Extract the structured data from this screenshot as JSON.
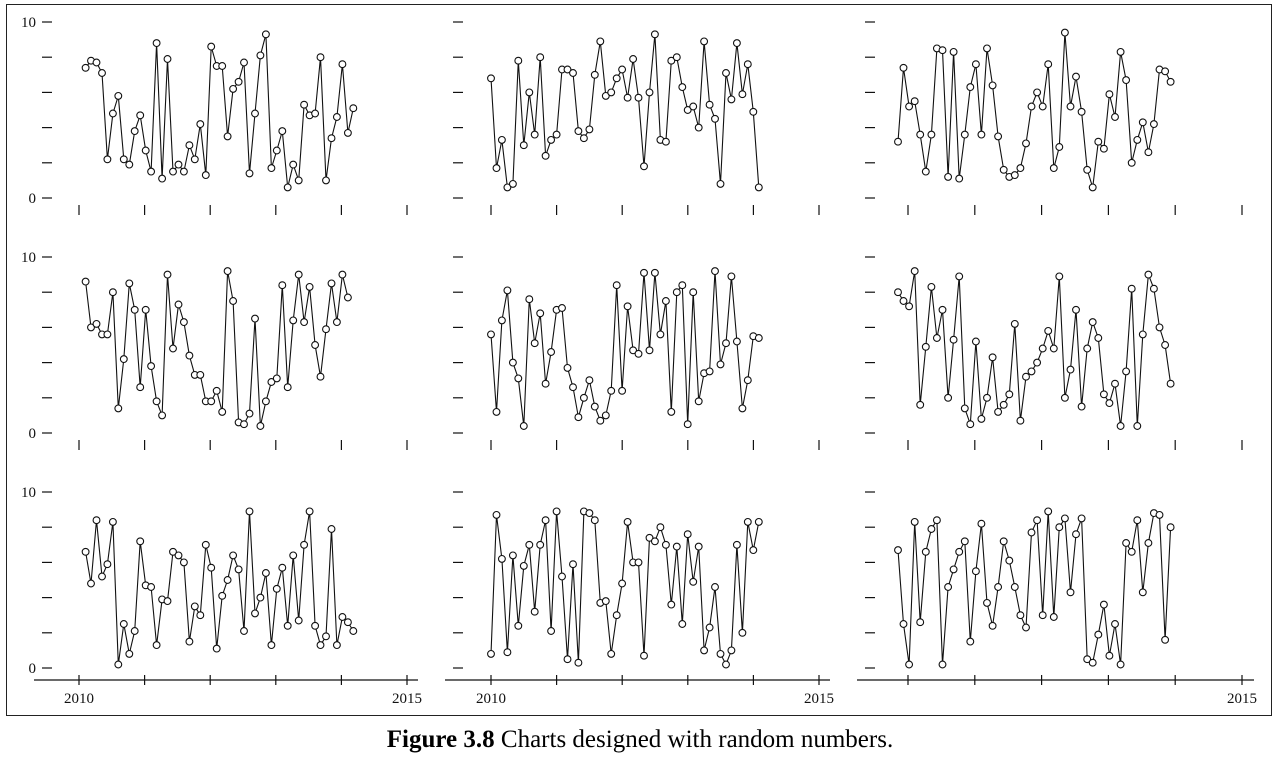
{
  "caption": {
    "label": "Figure 3.8",
    "text": " Charts designed with random numbers."
  },
  "chart_data": [
    {
      "type": "line",
      "panel": 1,
      "ylim": [
        0,
        10
      ],
      "yticks": [
        "10",
        "0"
      ],
      "xlim": [
        2010,
        2015
      ],
      "x_start": 2010.1,
      "x_step": 0.0833,
      "values": [
        7.4,
        7.8,
        7.7,
        7.1,
        2.2,
        4.8,
        5.8,
        2.2,
        1.9,
        3.8,
        4.7,
        2.7,
        1.5,
        8.8,
        1.1,
        7.9,
        1.5,
        1.9,
        1.5,
        3.0,
        2.2,
        4.2,
        1.3,
        8.6,
        7.5,
        7.5,
        3.5,
        6.2,
        6.6,
        7.7,
        1.4,
        4.8,
        8.1,
        9.3,
        1.7,
        2.7,
        3.8,
        0.6,
        1.9,
        1.0,
        5.3,
        4.7,
        4.8,
        8.0,
        1.0,
        3.4,
        4.6,
        7.6,
        3.7,
        5.1
      ]
    },
    {
      "type": "line",
      "panel": 2,
      "ylim": [
        0,
        10
      ],
      "xlim": [
        2010,
        2015
      ],
      "x_start": 2010.0,
      "x_step": 0.0833,
      "values": [
        6.8,
        1.7,
        3.3,
        0.6,
        0.8,
        7.8,
        3.0,
        6.0,
        3.6,
        8.0,
        2.4,
        3.3,
        3.6,
        7.3,
        7.3,
        7.1,
        3.8,
        3.4,
        3.9,
        7.0,
        8.9,
        5.8,
        6.0,
        6.8,
        7.3,
        5.7,
        7.9,
        5.7,
        1.8,
        6.0,
        9.3,
        3.3,
        3.2,
        7.8,
        8.0,
        6.3,
        5.0,
        5.2,
        4.0,
        8.9,
        5.3,
        4.5,
        0.8,
        7.1,
        5.6,
        8.8,
        5.9,
        7.6,
        4.9,
        0.6
      ]
    },
    {
      "type": "line",
      "panel": 3,
      "ylim": [
        0,
        10
      ],
      "xlim": [
        2010,
        2015
      ],
      "x_start": 2009.85,
      "x_step": 0.0833,
      "values": [
        3.2,
        7.4,
        5.2,
        5.5,
        3.6,
        1.5,
        3.6,
        8.5,
        8.4,
        1.2,
        8.3,
        1.1,
        3.6,
        6.3,
        7.6,
        3.6,
        8.5,
        6.4,
        3.5,
        1.6,
        1.2,
        1.3,
        1.7,
        3.1,
        5.2,
        6.0,
        5.2,
        7.6,
        1.7,
        2.9,
        9.4,
        5.2,
        6.9,
        4.9,
        1.6,
        0.6,
        3.2,
        2.8,
        5.9,
        4.6,
        8.3,
        6.7,
        2.0,
        3.3,
        4.3,
        2.6,
        4.2,
        7.3,
        7.2,
        6.6
      ]
    },
    {
      "type": "line",
      "panel": 4,
      "ylim": [
        0,
        10
      ],
      "yticks": [
        "10",
        "0"
      ],
      "xlim": [
        2010,
        2015
      ],
      "x_start": 2010.1,
      "x_step": 0.0833,
      "values": [
        8.6,
        6.0,
        6.2,
        5.6,
        5.6,
        8.0,
        1.4,
        4.2,
        8.5,
        7.0,
        2.6,
        7.0,
        3.8,
        1.8,
        1.0,
        9.0,
        4.8,
        7.3,
        6.3,
        4.4,
        3.3,
        3.3,
        1.8,
        1.8,
        2.4,
        1.2,
        9.2,
        7.5,
        0.6,
        0.5,
        1.1,
        6.5,
        0.4,
        1.8,
        2.9,
        3.1,
        8.4,
        2.6,
        6.4,
        9.0,
        6.3,
        8.3,
        5.0,
        3.2,
        5.9,
        8.5,
        6.3,
        9.0,
        7.7
      ]
    },
    {
      "type": "line",
      "panel": 5,
      "ylim": [
        0,
        10
      ],
      "xlim": [
        2010,
        2015
      ],
      "x_start": 2010.0,
      "x_step": 0.0833,
      "values": [
        5.6,
        1.2,
        6.4,
        8.1,
        4.0,
        3.1,
        0.4,
        7.6,
        5.1,
        6.8,
        2.8,
        4.6,
        7.0,
        7.1,
        3.7,
        2.6,
        0.9,
        2.0,
        3.0,
        1.5,
        0.7,
        1.0,
        2.4,
        8.4,
        2.4,
        7.2,
        4.7,
        4.5,
        9.1,
        4.7,
        9.1,
        5.6,
        7.5,
        1.2,
        8.0,
        8.4,
        0.5,
        8.0,
        1.8,
        3.4,
        3.5,
        9.2,
        3.9,
        5.1,
        8.9,
        5.2,
        1.4,
        3.0,
        5.5,
        5.4
      ]
    },
    {
      "type": "line",
      "panel": 6,
      "ylim": [
        0,
        10
      ],
      "xlim": [
        2010,
        2015
      ],
      "x_start": 2009.85,
      "x_step": 0.0833,
      "values": [
        8.0,
        7.5,
        7.2,
        9.2,
        1.6,
        4.9,
        8.3,
        5.4,
        7.0,
        2.0,
        5.3,
        8.9,
        1.4,
        0.5,
        5.2,
        0.8,
        2.0,
        4.3,
        1.2,
        1.6,
        2.2,
        6.2,
        0.7,
        3.2,
        3.5,
        4.0,
        4.8,
        5.8,
        4.8,
        8.9,
        2.0,
        3.6,
        7.0,
        1.5,
        4.8,
        6.3,
        5.4,
        2.2,
        1.7,
        2.8,
        0.4,
        3.5,
        8.2,
        0.4,
        5.6,
        9.0,
        8.2,
        6.0,
        5.0,
        2.8
      ]
    },
    {
      "type": "line",
      "panel": 7,
      "ylim": [
        0,
        10
      ],
      "yticks": [
        "10",
        "0"
      ],
      "xlim": [
        2010,
        2015
      ],
      "xticks": [
        "2010",
        "2015"
      ],
      "x_start": 2010.1,
      "x_step": 0.0833,
      "values": [
        6.6,
        4.8,
        8.4,
        5.2,
        5.9,
        8.3,
        0.2,
        2.5,
        0.8,
        2.1,
        7.2,
        4.7,
        4.6,
        1.3,
        3.9,
        3.8,
        6.6,
        6.4,
        6.0,
        1.5,
        3.5,
        3.0,
        7.0,
        5.7,
        1.1,
        4.1,
        5.0,
        6.4,
        5.6,
        2.1,
        8.9,
        3.1,
        4.0,
        5.4,
        1.3,
        4.5,
        5.7,
        2.4,
        6.4,
        2.7,
        7.0,
        8.9,
        2.4,
        1.3,
        1.8,
        7.9,
        1.3,
        2.9,
        2.6,
        2.1
      ]
    },
    {
      "type": "line",
      "panel": 8,
      "ylim": [
        0,
        10
      ],
      "xlim": [
        2010,
        2015
      ],
      "xticks": [
        "2010",
        "2015"
      ],
      "x_start": 2010.0,
      "x_step": 0.0833,
      "values": [
        0.8,
        8.7,
        6.2,
        0.9,
        6.4,
        2.4,
        5.8,
        7.0,
        3.2,
        7.0,
        8.4,
        2.1,
        8.9,
        5.2,
        0.5,
        5.9,
        0.3,
        8.9,
        8.8,
        8.4,
        3.7,
        3.8,
        0.8,
        3.0,
        4.8,
        8.3,
        6.0,
        6.0,
        0.7,
        7.4,
        7.2,
        8.0,
        7.0,
        3.6,
        6.9,
        2.5,
        7.6,
        4.9,
        6.9,
        1.0,
        2.3,
        4.6,
        0.8,
        0.2,
        1.0,
        7.0,
        2.0,
        8.3,
        6.7,
        8.3
      ]
    },
    {
      "type": "line",
      "panel": 9,
      "ylim": [
        0,
        10
      ],
      "xlim": [
        2010,
        2015
      ],
      "xticks": [
        "2015"
      ],
      "x_start": 2009.85,
      "x_step": 0.0833,
      "values": [
        6.7,
        2.5,
        0.2,
        8.3,
        2.6,
        6.6,
        7.9,
        8.4,
        0.2,
        4.6,
        5.6,
        6.6,
        7.2,
        1.5,
        5.5,
        8.2,
        3.7,
        2.4,
        4.6,
        7.2,
        6.1,
        4.6,
        3.0,
        2.3,
        7.7,
        8.4,
        3.0,
        8.9,
        2.9,
        8.0,
        8.5,
        4.3,
        7.6,
        8.5,
        0.5,
        0.3,
        1.9,
        3.6,
        0.7,
        2.5,
        0.2,
        7.1,
        6.6,
        8.4,
        4.3,
        7.1,
        8.8,
        8.7,
        1.6,
        8.0
      ]
    }
  ]
}
